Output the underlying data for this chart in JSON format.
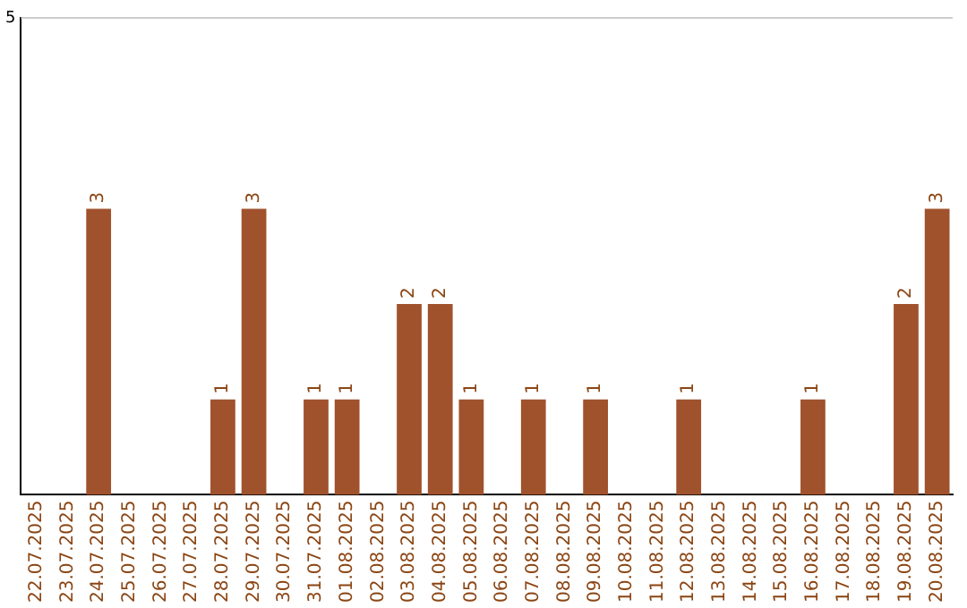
{
  "chart_data": {
    "type": "bar",
    "categories": [
      "22.07.2025",
      "23.07.2025",
      "24.07.2025",
      "25.07.2025",
      "26.07.2025",
      "27.07.2025",
      "28.07.2025",
      "29.07.2025",
      "30.07.2025",
      "31.07.2025",
      "01.08.2025",
      "02.08.2025",
      "03.08.2025",
      "04.08.2025",
      "05.08.2025",
      "06.08.2025",
      "07.08.2025",
      "08.08.2025",
      "09.08.2025",
      "10.08.2025",
      "11.08.2025",
      "12.08.2025",
      "13.08.2025",
      "14.08.2025",
      "15.08.2025",
      "16.08.2025",
      "17.08.2025",
      "18.08.2025",
      "19.08.2025",
      "20.08.2025"
    ],
    "values": [
      0,
      0,
      3,
      0,
      0,
      0,
      1,
      3,
      0,
      1,
      1,
      0,
      2,
      2,
      1,
      0,
      1,
      0,
      1,
      0,
      0,
      1,
      0,
      0,
      0,
      1,
      0,
      0,
      2,
      3
    ],
    "color": "#a0522d",
    "value_labels": [
      null,
      null,
      "3",
      null,
      null,
      null,
      "1",
      "3",
      null,
      "1",
      "1",
      null,
      "2",
      "2",
      "1",
      null,
      "1",
      null,
      "1",
      null,
      null,
      "1",
      null,
      null,
      null,
      "1",
      null,
      null,
      "2",
      "3"
    ],
    "ylim": [
      0,
      5
    ],
    "yticks": [
      5
    ],
    "ref_lines": [
      {
        "axis": "y",
        "value": 5,
        "color": "#cccccc"
      }
    ],
    "legend": false
  }
}
